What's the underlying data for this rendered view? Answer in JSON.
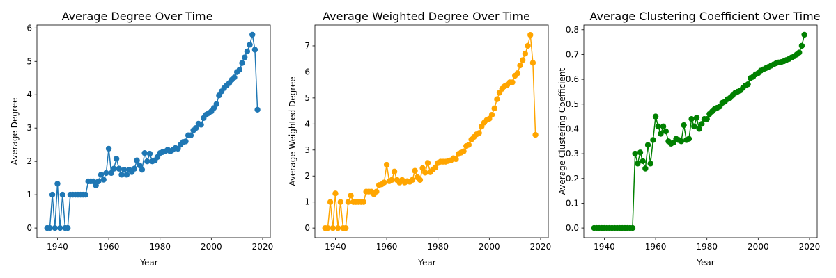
{
  "chart_data": [
    {
      "type": "line",
      "title": "Average Degree Over Time",
      "xlabel": "Year",
      "ylabel": "Average Degree",
      "color": "#1f77b4",
      "xlim": [
        1932,
        2023
      ],
      "ylim": [
        -0.29,
        6.09
      ],
      "xticks": [
        1940,
        1960,
        1980,
        2000,
        2020
      ],
      "yticks": [
        0,
        1,
        2,
        3,
        4,
        5,
        6
      ],
      "ytick_labels": [
        "0",
        "1",
        "2",
        "3",
        "4",
        "5",
        "6"
      ],
      "x": [
        1936,
        1937,
        1938,
        1939,
        1940,
        1941,
        1942,
        1943,
        1944,
        1945,
        1946,
        1947,
        1948,
        1949,
        1950,
        1951,
        1952,
        1953,
        1954,
        1955,
        1956,
        1957,
        1958,
        1959,
        1960,
        1961,
        1962,
        1963,
        1964,
        1965,
        1966,
        1967,
        1968,
        1969,
        1970,
        1971,
        1972,
        1973,
        1974,
        1975,
        1976,
        1977,
        1978,
        1979,
        1980,
        1981,
        1982,
        1983,
        1984,
        1985,
        1986,
        1987,
        1988,
        1989,
        1990,
        1991,
        1992,
        1993,
        1994,
        1995,
        1996,
        1997,
        1998,
        1999,
        2000,
        2001,
        2002,
        2003,
        2004,
        2005,
        2006,
        2007,
        2008,
        2009,
        2010,
        2011,
        2012,
        2013,
        2014,
        2015,
        2016,
        2017,
        2018
      ],
      "values": [
        0,
        0,
        1.0,
        0,
        1.33,
        0,
        1.0,
        0,
        0,
        1.0,
        1.0,
        1.0,
        1.0,
        1.0,
        1.0,
        1.0,
        1.4,
        1.4,
        1.4,
        1.28,
        1.4,
        1.6,
        1.45,
        1.65,
        2.38,
        1.65,
        1.78,
        2.08,
        1.78,
        1.6,
        1.75,
        1.6,
        1.75,
        1.68,
        1.78,
        2.03,
        1.88,
        1.75,
        2.25,
        2.0,
        2.23,
        2.0,
        2.03,
        2.13,
        2.25,
        2.28,
        2.3,
        2.35,
        2.3,
        2.35,
        2.4,
        2.38,
        2.5,
        2.58,
        2.6,
        2.78,
        2.78,
        2.93,
        3.0,
        3.13,
        3.1,
        3.3,
        3.4,
        3.45,
        3.5,
        3.6,
        3.72,
        3.98,
        4.1,
        4.2,
        4.28,
        4.35,
        4.45,
        4.52,
        4.68,
        4.75,
        4.95,
        5.12,
        5.3,
        5.5,
        5.8,
        5.35,
        3.55
      ]
    },
    {
      "type": "line",
      "title": "Average Weighted Degree Over Time",
      "xlabel": "Year",
      "ylabel": "Average Weighted Degree",
      "color": "#ffa500",
      "xlim": [
        1932,
        2023
      ],
      "ylim": [
        -0.37,
        7.8
      ],
      "xticks": [
        1940,
        1960,
        1980,
        2000,
        2020
      ],
      "yticks": [
        0,
        1,
        2,
        3,
        4,
        5,
        6,
        7
      ],
      "ytick_labels": [
        "0",
        "1",
        "2",
        "3",
        "4",
        "5",
        "6",
        "7"
      ],
      "x": [
        1936,
        1937,
        1938,
        1939,
        1940,
        1941,
        1942,
        1943,
        1944,
        1945,
        1946,
        1947,
        1948,
        1949,
        1950,
        1951,
        1952,
        1953,
        1954,
        1955,
        1956,
        1957,
        1958,
        1959,
        1960,
        1961,
        1962,
        1963,
        1964,
        1965,
        1966,
        1967,
        1968,
        1969,
        1970,
        1971,
        1972,
        1973,
        1974,
        1975,
        1976,
        1977,
        1978,
        1979,
        1980,
        1981,
        1982,
        1983,
        1984,
        1985,
        1986,
        1987,
        1988,
        1989,
        1990,
        1991,
        1992,
        1993,
        1994,
        1995,
        1996,
        1997,
        1998,
        1999,
        2000,
        2001,
        2002,
        2003,
        2004,
        2005,
        2006,
        2007,
        2008,
        2009,
        2010,
        2011,
        2012,
        2013,
        2014,
        2015,
        2016,
        2017,
        2018
      ],
      "values": [
        0,
        0,
        1.0,
        0,
        1.33,
        0,
        1.0,
        0,
        0,
        1.0,
        1.25,
        1.0,
        1.0,
        1.0,
        1.0,
        1.0,
        1.4,
        1.4,
        1.4,
        1.3,
        1.4,
        1.65,
        1.68,
        1.75,
        2.43,
        1.8,
        1.85,
        2.17,
        1.85,
        1.75,
        1.85,
        1.75,
        1.8,
        1.78,
        1.85,
        2.2,
        1.95,
        1.85,
        2.3,
        2.13,
        2.5,
        2.15,
        2.25,
        2.33,
        2.5,
        2.55,
        2.55,
        2.55,
        2.58,
        2.6,
        2.68,
        2.65,
        2.85,
        2.9,
        2.95,
        3.15,
        3.2,
        3.4,
        3.5,
        3.6,
        3.65,
        3.9,
        4.05,
        4.15,
        4.2,
        4.35,
        4.6,
        4.95,
        5.2,
        5.35,
        5.45,
        5.5,
        5.6,
        5.6,
        5.85,
        5.95,
        6.25,
        6.45,
        6.7,
        7.0,
        7.42,
        6.35,
        3.58
      ]
    },
    {
      "type": "line",
      "title": "Average Clustering Coefficient Over Time",
      "xlabel": "Year",
      "ylabel": "Average Clustering Coefficient",
      "color": "#008000",
      "xlim": [
        1932,
        2023
      ],
      "ylim": [
        -0.039,
        0.819
      ],
      "xticks": [
        1940,
        1960,
        1980,
        2000,
        2020
      ],
      "yticks": [
        0.0,
        0.1,
        0.2,
        0.3,
        0.4,
        0.5,
        0.6,
        0.7,
        0.8
      ],
      "ytick_labels": [
        "0.0",
        "0.1",
        "0.2",
        "0.3",
        "0.4",
        "0.5",
        "0.6",
        "0.7",
        "0.8"
      ],
      "x": [
        1936,
        1937,
        1938,
        1939,
        1940,
        1941,
        1942,
        1943,
        1944,
        1945,
        1946,
        1947,
        1948,
        1949,
        1950,
        1951,
        1952,
        1953,
        1954,
        1955,
        1956,
        1957,
        1958,
        1959,
        1960,
        1961,
        1962,
        1963,
        1964,
        1965,
        1966,
        1967,
        1968,
        1969,
        1970,
        1971,
        1972,
        1973,
        1974,
        1975,
        1976,
        1977,
        1978,
        1979,
        1980,
        1981,
        1982,
        1983,
        1984,
        1985,
        1986,
        1987,
        1988,
        1989,
        1990,
        1991,
        1992,
        1993,
        1994,
        1995,
        1996,
        1997,
        1998,
        1999,
        2000,
        2001,
        2002,
        2003,
        2004,
        2005,
        2006,
        2007,
        2008,
        2009,
        2010,
        2011,
        2012,
        2013,
        2014,
        2015,
        2016,
        2017,
        2018
      ],
      "values": [
        0,
        0,
        0,
        0,
        0,
        0,
        0,
        0,
        0,
        0,
        0,
        0,
        0,
        0,
        0,
        0,
        0.3,
        0.26,
        0.305,
        0.27,
        0.24,
        0.335,
        0.26,
        0.355,
        0.45,
        0.41,
        0.38,
        0.41,
        0.39,
        0.35,
        0.34,
        0.345,
        0.36,
        0.355,
        0.35,
        0.415,
        0.355,
        0.36,
        0.44,
        0.41,
        0.445,
        0.4,
        0.42,
        0.44,
        0.44,
        0.46,
        0.47,
        0.48,
        0.485,
        0.49,
        0.505,
        0.51,
        0.52,
        0.525,
        0.535,
        0.545,
        0.55,
        0.555,
        0.565,
        0.575,
        0.58,
        0.605,
        0.61,
        0.62,
        0.625,
        0.635,
        0.64,
        0.645,
        0.65,
        0.655,
        0.66,
        0.665,
        0.668,
        0.67,
        0.673,
        0.678,
        0.682,
        0.688,
        0.693,
        0.7,
        0.708,
        0.735,
        0.78
      ]
    }
  ]
}
